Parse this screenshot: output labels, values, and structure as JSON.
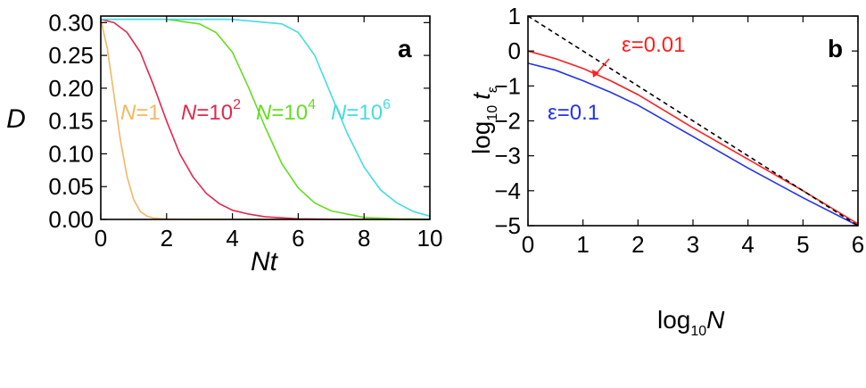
{
  "chart_data": [
    {
      "type": "line",
      "panel_label": "a",
      "xlabel": "Nt",
      "ylabel": "D",
      "xlim": [
        0,
        10
      ],
      "ylim": [
        0,
        0.31
      ],
      "xticks": [
        "0",
        "2",
        "4",
        "6",
        "8",
        "10"
      ],
      "yticks": [
        "0.00",
        "0.05",
        "0.10",
        "0.15",
        "0.20",
        "0.25",
        "0.30"
      ],
      "series": [
        {
          "name": "N=1",
          "label_parts": {
            "var": "N",
            "eq": "=1",
            "sup": ""
          },
          "color": "#f3b862",
          "x": [
            0,
            0.2,
            0.4,
            0.6,
            0.8,
            1.0,
            1.2,
            1.4,
            1.6,
            2.0,
            3.0,
            10.0
          ],
          "y": [
            0.305,
            0.26,
            0.19,
            0.12,
            0.065,
            0.03,
            0.012,
            0.005,
            0.002,
            0.0005,
            0.0,
            0.0
          ]
        },
        {
          "name": "N=10^2",
          "label_parts": {
            "var": "N",
            "eq": "=10",
            "sup": "2"
          },
          "color": "#e0284e",
          "x": [
            0,
            0.4,
            0.8,
            1.2,
            1.6,
            2.0,
            2.4,
            2.8,
            3.2,
            3.6,
            4.0,
            4.5,
            5.0,
            6.0,
            7.0,
            10.0
          ],
          "y": [
            0.305,
            0.3,
            0.285,
            0.255,
            0.205,
            0.15,
            0.1,
            0.065,
            0.04,
            0.024,
            0.014,
            0.008,
            0.004,
            0.001,
            0.0003,
            0.0
          ]
        },
        {
          "name": "N=10^4",
          "label_parts": {
            "var": "N",
            "eq": "=10",
            "sup": "4"
          },
          "color": "#66dd22",
          "x": [
            0,
            2.0,
            3.0,
            3.5,
            4.0,
            4.5,
            5.0,
            5.5,
            6.0,
            6.5,
            7.0,
            8.0,
            9.0,
            10.0
          ],
          "y": [
            0.305,
            0.305,
            0.298,
            0.285,
            0.255,
            0.2,
            0.14,
            0.085,
            0.048,
            0.025,
            0.013,
            0.003,
            0.001,
            0.0003
          ],
          "_": "approx"
        },
        {
          "name": "N=10^6",
          "label_parts": {
            "var": "N",
            "eq": "=10",
            "sup": "6"
          },
          "color": "#44dde0",
          "x": [
            0,
            4.0,
            5.5,
            6.0,
            6.5,
            7.0,
            7.5,
            8.0,
            8.5,
            9.0,
            9.5,
            10.0
          ],
          "y": [
            0.305,
            0.305,
            0.298,
            0.285,
            0.25,
            0.19,
            0.13,
            0.08,
            0.045,
            0.025,
            0.012,
            0.005
          ]
        }
      ]
    },
    {
      "type": "line",
      "panel_label": "b",
      "xlabel_parts": {
        "base": "log",
        "sub": "10",
        "var": "N"
      },
      "ylabel_parts": {
        "base": "log",
        "sub": "10",
        "var": "t",
        "varsub": "ε"
      },
      "xlim": [
        0,
        6
      ],
      "ylim": [
        -5,
        1
      ],
      "xticks": [
        "0",
        "1",
        "2",
        "3",
        "4",
        "5",
        "6"
      ],
      "yticks": [
        "1",
        "0",
        "−1",
        "−2",
        "−3",
        "−4",
        "−5"
      ],
      "series": [
        {
          "name": "ε=0.01",
          "color": "#ff2020",
          "style": "solid",
          "x": [
            0,
            0.5,
            1.0,
            1.5,
            2.0,
            3.0,
            4.0,
            5.0,
            6.0
          ],
          "y": [
            0.0,
            -0.22,
            -0.5,
            -0.85,
            -1.25,
            -2.2,
            -3.1,
            -4.0,
            -4.95
          ]
        },
        {
          "name": "ε=0.1",
          "color": "#2233ee",
          "style": "solid",
          "x": [
            0,
            0.5,
            1.0,
            1.5,
            2.0,
            3.0,
            4.0,
            5.0,
            6.0
          ],
          "y": [
            -0.35,
            -0.55,
            -0.85,
            -1.18,
            -1.55,
            -2.45,
            -3.35,
            -4.2,
            -5.0
          ]
        },
        {
          "name": "reference",
          "color": "#000000",
          "style": "dashed",
          "x": [
            0,
            6
          ],
          "y": [
            1,
            -5
          ]
        }
      ],
      "annotations": [
        {
          "text": "ε=0.01",
          "color": "#ff2020",
          "arrow_to": [
            1.25,
            -0.6
          ]
        },
        {
          "text": "ε=0.1",
          "color": "#2233ee"
        }
      ]
    }
  ]
}
